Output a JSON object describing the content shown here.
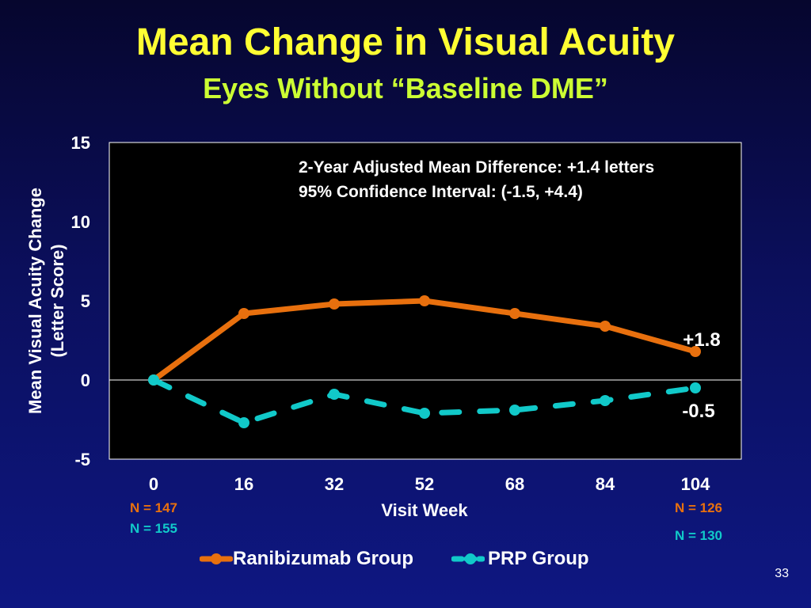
{
  "slide": {
    "title": "Mean Change in Visual Acuity",
    "subtitle": "Eyes Without “Baseline DME”",
    "page_number": "33"
  },
  "colors": {
    "ranibizumab": "#e8700e",
    "prp": "#11c9c9",
    "title": "#ffff33",
    "subtitle": "#ccff33"
  },
  "n_counts": {
    "rani_start": "N = 147",
    "prp_start": "N = 155",
    "rani_end": "N = 126",
    "prp_end": "N = 130"
  },
  "chart_data": {
    "type": "line",
    "title": "",
    "xlabel": "Visit Week",
    "ylabel": "Mean Visual Acuity Change (Letter Score)",
    "ylabel_lines": [
      "Mean Visual Acuity Change",
      "(Letter Score)"
    ],
    "categories": [
      "0",
      "16",
      "32",
      "52",
      "68",
      "84",
      "104"
    ],
    "ylim": [
      -5,
      15
    ],
    "yticks": [
      -5,
      0,
      5,
      10,
      15
    ],
    "grid": false,
    "legend_position": "bottom",
    "series": [
      {
        "name": "Ranibizumab Group",
        "values": [
          0,
          4.2,
          4.8,
          5.0,
          4.2,
          3.4,
          1.8
        ],
        "line_style": "solid"
      },
      {
        "name": "PRP Group",
        "values": [
          0,
          -2.7,
          -0.9,
          -2.1,
          -1.9,
          -1.3,
          -0.5
        ],
        "line_style": "dashed"
      }
    ],
    "annotations": [
      "2-Year Adjusted Mean Difference: +1.4 letters",
      "95% Confidence Interval: (-1.5, +4.4)"
    ],
    "end_labels": [
      "+1.8",
      "-0.5"
    ]
  }
}
